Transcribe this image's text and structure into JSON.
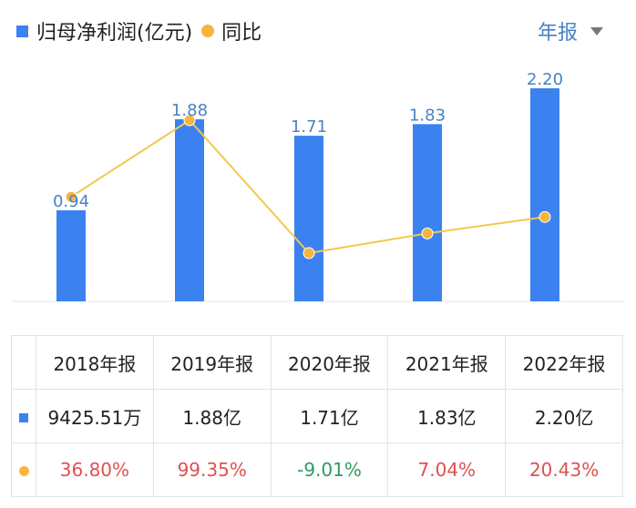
{
  "legend": {
    "bar_label": "归母净利润(亿元)",
    "line_label": "同比"
  },
  "period_selector": {
    "label": "年报"
  },
  "colors": {
    "bar": "#3b82f0",
    "line": "#f3c74f",
    "dot": "#f6b53f",
    "bar_label": "#4a82c4",
    "positive": "#e0504f",
    "negative": "#2e9c5e"
  },
  "chart_data": {
    "type": "bar",
    "categories": [
      "2018年报",
      "2019年报",
      "2020年报",
      "2021年报",
      "2022年报"
    ],
    "series": [
      {
        "name": "归母净利润(亿元)",
        "type": "bar",
        "values": [
          0.94,
          1.88,
          1.71,
          1.83,
          2.2
        ],
        "labels": [
          "0.94",
          "1.88",
          "1.71",
          "1.83",
          "2.20"
        ]
      },
      {
        "name": "同比",
        "type": "line",
        "values": [
          36.8,
          99.35,
          -9.01,
          7.04,
          20.43
        ]
      }
    ],
    "grid": false,
    "legend_position": "top-left"
  },
  "table": {
    "headers": [
      "2018年报",
      "2019年报",
      "2020年报",
      "2021年报",
      "2022年报"
    ],
    "profit_row": [
      "9425.51万",
      "1.88亿",
      "1.71亿",
      "1.83亿",
      "2.20亿"
    ],
    "yoy_row": [
      "36.80%",
      "99.35%",
      "-9.01%",
      "7.04%",
      "20.43%"
    ],
    "yoy_sign": [
      "pos",
      "pos",
      "neg",
      "pos",
      "pos"
    ]
  }
}
